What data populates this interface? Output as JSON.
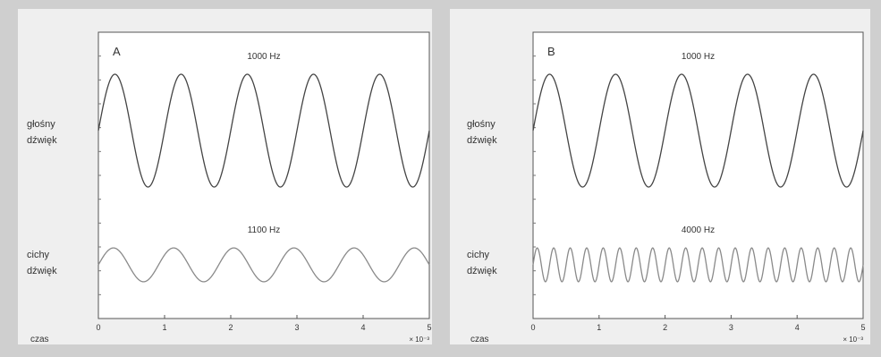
{
  "chart_data": [
    {
      "type": "line",
      "panel_label": "A",
      "xlabel": "czas",
      "x_exponent_label": "× 10⁻³",
      "xlim": [
        0,
        5
      ],
      "x_ticks": [
        "0",
        "1",
        "2",
        "3",
        "4",
        "5"
      ],
      "grid": false,
      "series": [
        {
          "name": "1000 Hz",
          "side_label": [
            "głośny",
            "dźwięk"
          ],
          "frequency_hz": 1000,
          "amplitude": 1.0,
          "line_color": "#444444"
        },
        {
          "name": "1100 Hz",
          "side_label": [
            "cichy",
            "dźwięk"
          ],
          "frequency_hz": 1100,
          "amplitude": 0.3,
          "line_color": "#8a8a8a"
        }
      ]
    },
    {
      "type": "line",
      "panel_label": "B",
      "xlabel": "czas",
      "x_exponent_label": "× 10⁻³",
      "xlim": [
        0,
        5
      ],
      "x_ticks": [
        "0",
        "1",
        "2",
        "3",
        "4",
        "5"
      ],
      "grid": false,
      "series": [
        {
          "name": "1000 Hz",
          "side_label": [
            "głośny",
            "dźwięk"
          ],
          "frequency_hz": 1000,
          "amplitude": 1.0,
          "line_color": "#444444"
        },
        {
          "name": "4000 Hz",
          "side_label": [
            "cichy",
            "dźwięk"
          ],
          "frequency_hz": 4000,
          "amplitude": 0.3,
          "line_color": "#8a8a8a"
        }
      ]
    }
  ]
}
